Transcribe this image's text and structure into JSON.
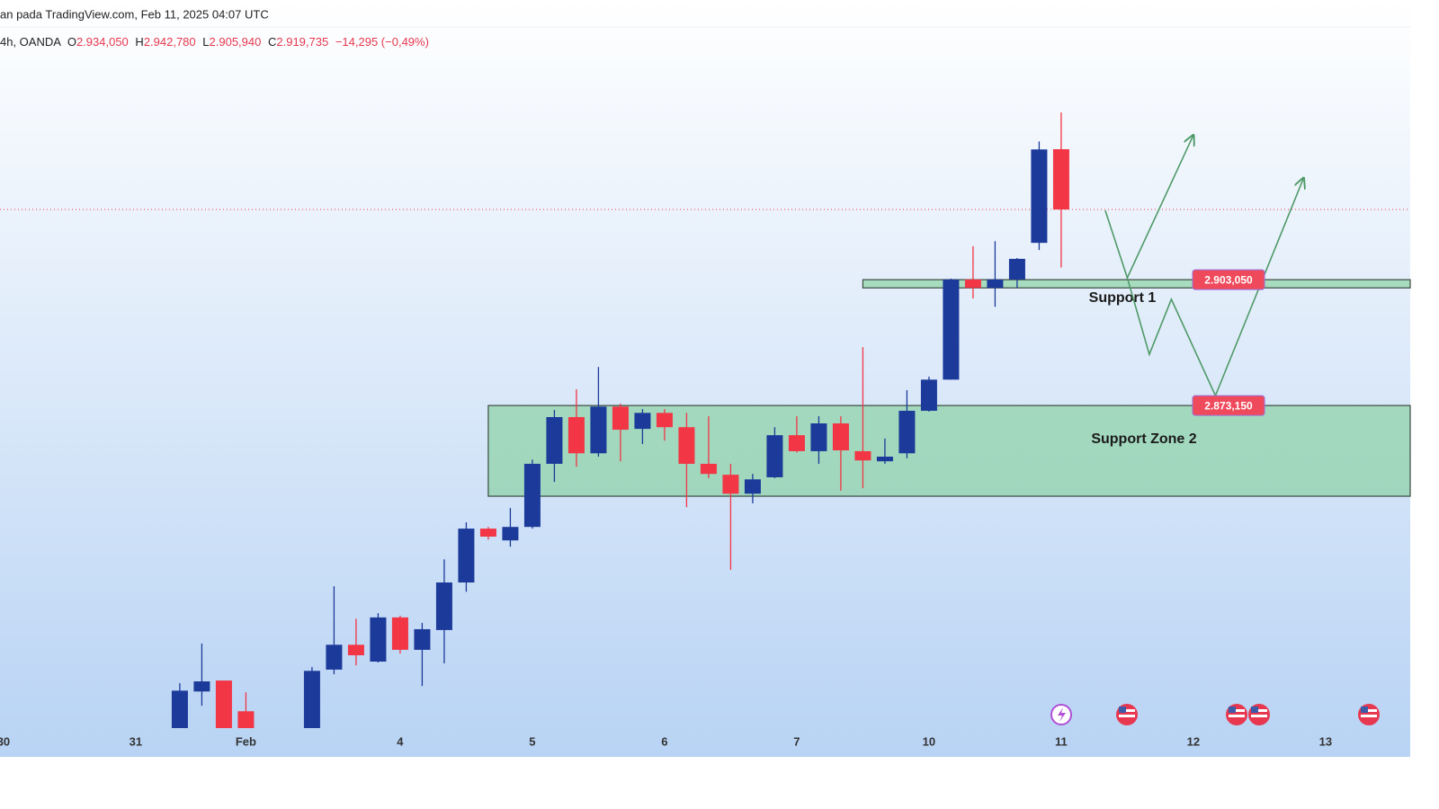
{
  "chart_data": {
    "type": "candlestick",
    "title": "an pada TradingView.com, Feb 11, 2025 04:07 UTC",
    "subtitle": "4h, OANDA",
    "ohlc_keys": [
      "O",
      "H",
      "L",
      "C"
    ],
    "ohlc_labels": [
      "2.934,050",
      "2.942,780",
      "2.905,940",
      "2.919,735"
    ],
    "change_label": "−14,295 (−0,49%)",
    "xlim": [
      -8.16,
      55.84
    ],
    "ylim": [
      2796.5,
      2963.1
    ],
    "xticks": [
      {
        "value": -8,
        "label": "30"
      },
      {
        "value": -2,
        "label": "31"
      },
      {
        "value": 3,
        "label": "Feb"
      },
      {
        "value": 10,
        "label": "4"
      },
      {
        "value": 16,
        "label": "5"
      },
      {
        "value": 22,
        "label": "6"
      },
      {
        "value": 28,
        "label": "7"
      },
      {
        "value": 34,
        "label": "10"
      },
      {
        "value": 40,
        "label": "11"
      },
      {
        "value": 46,
        "label": "12"
      },
      {
        "value": 52,
        "label": "13"
      }
    ],
    "up_color": "#1c3a9a",
    "down_color": "#f23645",
    "series": [
      {
        "x": [
          0,
          1,
          2,
          3,
          6,
          7,
          8,
          9,
          10,
          11,
          12,
          13,
          14,
          15,
          16,
          17,
          18,
          19,
          20,
          21,
          22,
          23,
          24,
          25,
          26,
          27,
          28,
          29,
          30,
          31,
          32,
          33,
          34,
          35,
          36,
          37,
          38,
          39,
          40
        ],
        "open": [
          2796.0,
          2805.2,
          2807.8,
          2800.5,
          2796.0,
          2810.4,
          2816.3,
          2812.3,
          2822.8,
          2815.1,
          2819.8,
          2831.1,
          2843.9,
          2841.1,
          2844.3,
          2859.3,
          2870.4,
          2861.8,
          2872.9,
          2867.6,
          2871.4,
          2868.0,
          2859.3,
          2856.7,
          2852.2,
          2856.1,
          2866.1,
          2862.3,
          2868.9,
          2862.3,
          2859.9,
          2861.8,
          2871.9,
          2879.3,
          2903.1,
          2901.1,
          2903.1,
          2911.8,
          2934.05
        ],
        "high": [
          2807.2,
          2816.6,
          2807.8,
          2805.0,
          2811.0,
          2830.2,
          2822.5,
          2823.8,
          2823.2,
          2821.5,
          2836.6,
          2845.4,
          2844.3,
          2848.8,
          2860.3,
          2872.1,
          2877.0,
          2882.3,
          2873.6,
          2872.3,
          2872.3,
          2871.4,
          2870.6,
          2859.3,
          2856.9,
          2868.0,
          2870.6,
          2870.6,
          2870.6,
          2887.0,
          2865.3,
          2876.8,
          2880.0,
          2903.3,
          2911.0,
          2912.2,
          2908.2,
          2935.9,
          2942.78
        ],
        "low": [
          2795.4,
          2801.8,
          2795.4,
          2795.4,
          2795.4,
          2809.3,
          2811.4,
          2812.1,
          2814.2,
          2806.5,
          2811.9,
          2828.9,
          2841.3,
          2839.6,
          2843.9,
          2855.0,
          2858.6,
          2861.0,
          2859.9,
          2864.0,
          2864.8,
          2849.0,
          2855.9,
          2834.1,
          2849.9,
          2855.9,
          2862.0,
          2859.3,
          2852.9,
          2853.5,
          2859.3,
          2860.6,
          2871.7,
          2879.3,
          2898.6,
          2896.6,
          2901.1,
          2910.1,
          2905.94
        ],
        "close": [
          2805.4,
          2807.6,
          2796.0,
          2796.0,
          2810.1,
          2816.3,
          2813.8,
          2822.8,
          2815.1,
          2820.0,
          2831.1,
          2843.9,
          2842.0,
          2844.3,
          2859.3,
          2870.4,
          2861.8,
          2872.9,
          2867.4,
          2871.4,
          2868.0,
          2859.3,
          2856.9,
          2852.2,
          2855.6,
          2866.1,
          2862.3,
          2868.9,
          2862.5,
          2860.1,
          2861.0,
          2871.9,
          2879.3,
          2903.1,
          2901.1,
          2903.1,
          2908.0,
          2934.0,
          2919.735
        ]
      }
    ],
    "zones": [
      {
        "name": "Support 1",
        "low": 2901.1,
        "high": 2903.05,
        "x_start": 31,
        "tag": "2.903,050"
      },
      {
        "name": "Support Zone 2",
        "low": 2851.6,
        "high": 2873.15,
        "x_start": 14,
        "tag": "2.873,150"
      }
    ],
    "projection_color": "#4f9a68",
    "projections": [
      {
        "x": [
          42,
          43,
          46
        ],
        "y": [
          2919.5,
          2903.5,
          2937.4
        ]
      },
      {
        "x": [
          43,
          44,
          45,
          47,
          51
        ],
        "y": [
          2903.5,
          2885.3,
          2898.4,
          2875.5,
          2927.2
        ]
      }
    ]
  }
}
